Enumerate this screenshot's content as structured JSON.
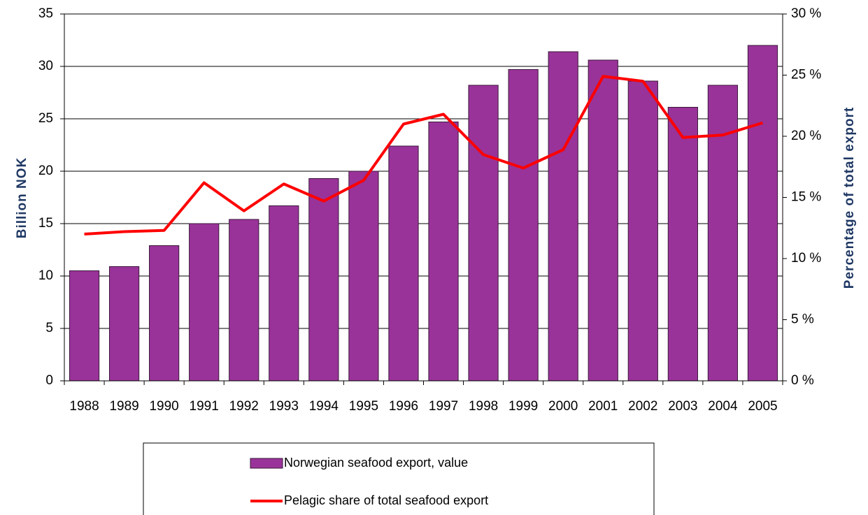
{
  "chart_data": {
    "type": "bar",
    "categories": [
      "1988",
      "1989",
      "1990",
      "1991",
      "1992",
      "1993",
      "1994",
      "1995",
      "1996",
      "1997",
      "1998",
      "1999",
      "2000",
      "2001",
      "2002",
      "2003",
      "2004",
      "2005"
    ],
    "series": [
      {
        "name": "Norwegian seafood export, value",
        "type": "bar",
        "color": "#993399",
        "values": [
          10.5,
          10.9,
          12.9,
          15.0,
          15.4,
          16.7,
          19.3,
          20.0,
          22.4,
          24.7,
          28.2,
          29.7,
          31.4,
          30.6,
          28.6,
          26.1,
          28.2,
          32.0
        ]
      },
      {
        "name": "Pelagic share of total seafood export",
        "type": "line",
        "axis": "y2",
        "color": "#ff0000",
        "values": [
          12.0,
          12.2,
          12.3,
          16.2,
          13.9,
          16.1,
          14.7,
          16.4,
          21.0,
          21.8,
          18.5,
          17.4,
          18.9,
          24.9,
          24.5,
          19.9,
          20.1,
          21.1
        ]
      }
    ],
    "ylabel": "Billion NOK",
    "y2label": "Percentage of total export",
    "ylim": [
      0,
      35
    ],
    "yticks": [
      0,
      5,
      10,
      15,
      20,
      25,
      30,
      35
    ],
    "y2lim": [
      0,
      30
    ],
    "y2ticks": [
      {
        "value": 0,
        "label": "0 %"
      },
      {
        "value": 5,
        "label": "5 %"
      },
      {
        "value": 10,
        "label": "10 %"
      },
      {
        "value": 15,
        "label": "15 %"
      },
      {
        "value": 20,
        "label": "20 %"
      },
      {
        "value": 25,
        "label": "25 %"
      },
      {
        "value": 30,
        "label": "30 %"
      }
    ],
    "grid": true
  }
}
